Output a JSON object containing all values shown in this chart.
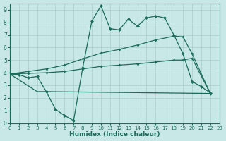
{
  "xlabel": "Humidex (Indice chaleur)",
  "bg_color": "#c8e8e8",
  "line_color": "#1a6b5a",
  "grid_color": "#a8cccc",
  "xlim": [
    0,
    23
  ],
  "ylim": [
    0,
    9.5
  ],
  "xticks": [
    0,
    1,
    2,
    3,
    4,
    5,
    6,
    7,
    8,
    9,
    10,
    11,
    12,
    13,
    14,
    15,
    16,
    17,
    18,
    19,
    20,
    21,
    22,
    23
  ],
  "yticks": [
    0,
    1,
    2,
    3,
    4,
    5,
    6,
    7,
    8,
    9
  ],
  "series": [
    {
      "x": [
        0,
        1,
        2,
        3,
        4,
        5,
        6,
        7,
        8,
        9,
        10,
        11,
        12,
        13,
        14,
        15,
        16,
        17,
        18,
        19,
        20,
        21,
        22
      ],
      "y": [
        3.9,
        3.85,
        3.6,
        3.7,
        2.5,
        1.1,
        0.6,
        0.2,
        4.4,
        8.1,
        9.3,
        7.5,
        7.4,
        8.25,
        7.7,
        8.35,
        8.5,
        8.35,
        7.0,
        5.5,
        3.3,
        2.9,
        2.4
      ],
      "marker": true,
      "ms": 2.5
    },
    {
      "x": [
        0,
        2,
        4,
        6,
        8,
        10,
        12,
        14,
        16,
        18,
        19,
        20,
        22
      ],
      "y": [
        3.9,
        4.1,
        4.3,
        4.6,
        5.1,
        5.55,
        5.85,
        6.2,
        6.6,
        6.9,
        6.85,
        5.5,
        2.35
      ],
      "marker": true,
      "ms": 2.0
    },
    {
      "x": [
        0,
        2,
        4,
        6,
        8,
        10,
        12,
        14,
        16,
        18,
        19,
        20,
        22
      ],
      "y": [
        3.9,
        3.95,
        4.0,
        4.1,
        4.3,
        4.5,
        4.6,
        4.7,
        4.85,
        5.0,
        5.0,
        5.15,
        2.35
      ],
      "marker": true,
      "ms": 2.0
    },
    {
      "x": [
        0,
        3,
        4,
        22
      ],
      "y": [
        3.9,
        2.5,
        2.5,
        2.35
      ],
      "marker": false,
      "ms": 0
    }
  ]
}
